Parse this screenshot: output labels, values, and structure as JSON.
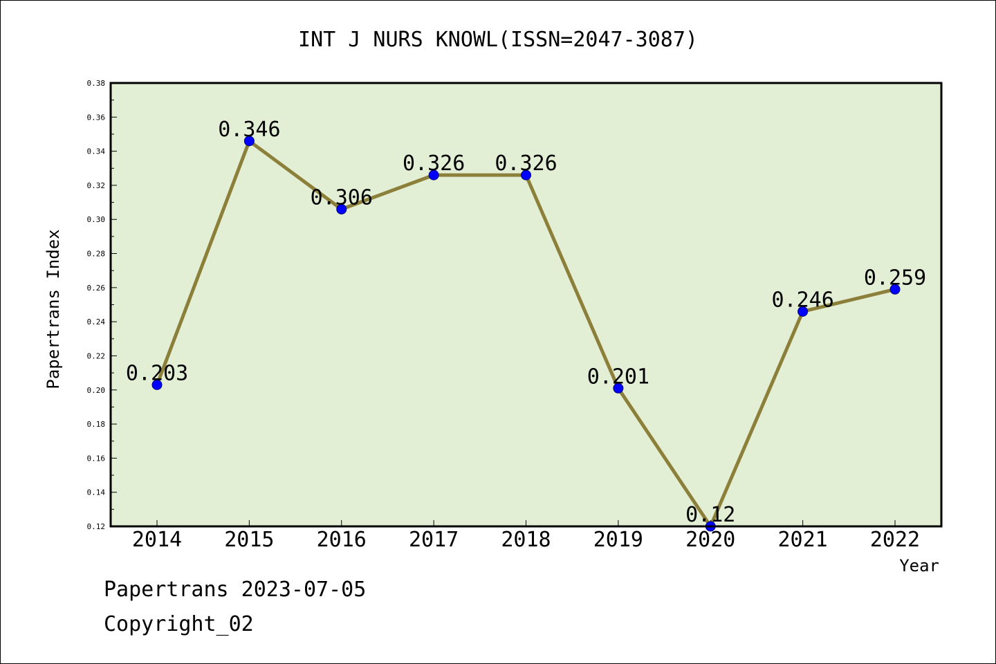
{
  "chart_data": {
    "type": "line",
    "title": "INT J NURS KNOWL(ISSN=2047-3087)",
    "xlabel": "Year",
    "ylabel": "Papertrans Index",
    "categories": [
      "2014",
      "2015",
      "2016",
      "2017",
      "2018",
      "2019",
      "2020",
      "2021",
      "2022"
    ],
    "values": [
      0.203,
      0.346,
      0.306,
      0.326,
      0.326,
      0.201,
      0.12,
      0.246,
      0.259
    ],
    "data_labels": [
      "0.203",
      "0.346",
      "0.306",
      "0.326",
      "0.326",
      "0.201",
      "0.12",
      "0.246",
      "0.259"
    ],
    "ylim": [
      0.12,
      0.38
    ],
    "yticks": [
      "0.12",
      "0.14",
      "0.16",
      "0.18",
      "0.20",
      "0.22",
      "0.24",
      "0.26",
      "0.28",
      "0.30",
      "0.32",
      "0.34",
      "0.36",
      "0.38"
    ],
    "grid": false,
    "colors": {
      "plot_background": "#e2efd5",
      "line": "#8c7f3a",
      "marker": "#0000ff"
    }
  },
  "footer": {
    "stamp": "Papertrans 2023-07-05",
    "copyright": "Copyright_02"
  }
}
